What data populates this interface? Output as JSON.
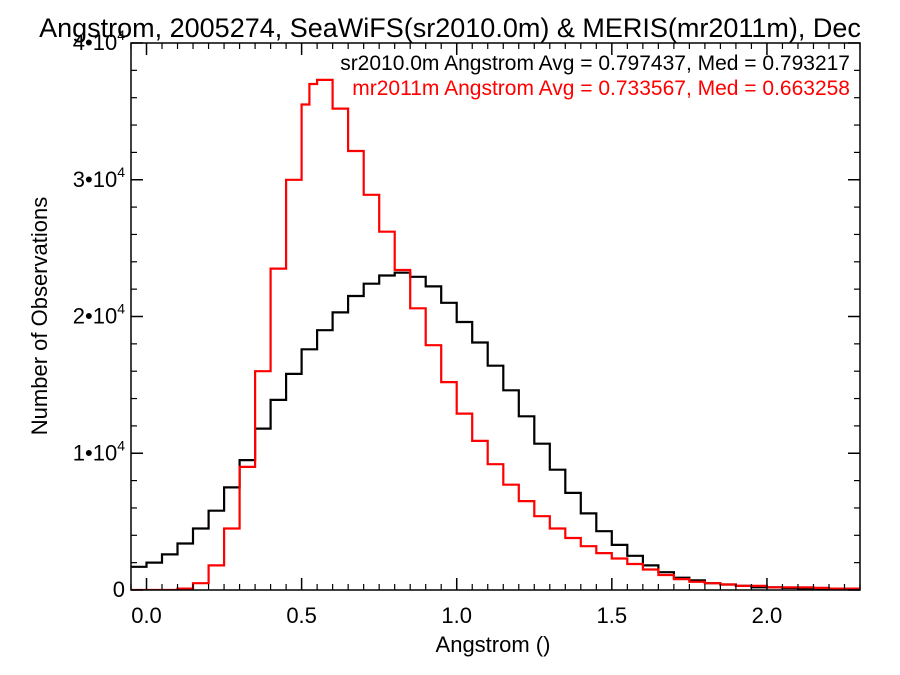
{
  "chart_data": {
    "type": "line",
    "title": "Angstrom, 2005274, SeaWiFS(sr2010.0m) & MERIS(mr2011m), Dec",
    "xlabel": "Angstrom ()",
    "ylabel": "Number of Observations",
    "xlim": [
      -0.05,
      2.3
    ],
    "ylim": [
      0,
      40000
    ],
    "xticks": [
      0.0,
      0.5,
      1.0,
      1.5,
      2.0
    ],
    "xtick_labels": [
      "0.0",
      "0.5",
      "1.0",
      "1.5",
      "2.0"
    ],
    "yticks": [
      0,
      10000,
      20000,
      30000,
      40000
    ],
    "ytick_labels": [
      {
        "mantissa": "0",
        "exp": ""
      },
      {
        "mantissa": "1•10",
        "exp": "4"
      },
      {
        "mantissa": "2•10",
        "exp": "4"
      },
      {
        "mantissa": "3•10",
        "exp": "4"
      },
      {
        "mantissa": "4•10",
        "exp": "4"
      }
    ],
    "legend_position": "top-right",
    "grid": false,
    "series": [
      {
        "name": "sr2010.0m",
        "legend_text": "sr2010.0m Angstrom Avg = 0.797437, Med = 0.793217",
        "color": "#000000",
        "x": [
          -0.05,
          0.0,
          0.05,
          0.1,
          0.15,
          0.2,
          0.25,
          0.3,
          0.35,
          0.4,
          0.45,
          0.5,
          0.55,
          0.6,
          0.65,
          0.7,
          0.75,
          0.8,
          0.85,
          0.9,
          0.95,
          1.0,
          1.05,
          1.1,
          1.15,
          1.2,
          1.25,
          1.3,
          1.35,
          1.4,
          1.45,
          1.5,
          1.55,
          1.6,
          1.65,
          1.7,
          1.75,
          1.8,
          1.85,
          1.9,
          1.95,
          2.0,
          2.05,
          2.1,
          2.15,
          2.2,
          2.25,
          2.3
        ],
        "y": [
          1700,
          2000,
          2600,
          3400,
          4500,
          5800,
          7500,
          9500,
          11800,
          13900,
          15800,
          17600,
          19000,
          20300,
          21500,
          22400,
          23000,
          23200,
          22900,
          22200,
          21000,
          19600,
          18100,
          16400,
          14600,
          12700,
          10700,
          8800,
          7100,
          5600,
          4300,
          3300,
          2500,
          1800,
          1300,
          900,
          700,
          500,
          400,
          300,
          200,
          200,
          150,
          100,
          100,
          50,
          50,
          50
        ]
      },
      {
        "name": "mr2011m",
        "legend_text": "mr2011m Angstrom Avg = 0.733567, Med = 0.663258",
        "color": "#ff0000",
        "x": [
          -0.05,
          0.0,
          0.05,
          0.1,
          0.15,
          0.2,
          0.25,
          0.3,
          0.35,
          0.4,
          0.45,
          0.5,
          0.525,
          0.55,
          0.6,
          0.65,
          0.7,
          0.75,
          0.8,
          0.85,
          0.9,
          0.95,
          1.0,
          1.05,
          1.1,
          1.15,
          1.2,
          1.25,
          1.3,
          1.35,
          1.4,
          1.45,
          1.5,
          1.55,
          1.6,
          1.65,
          1.7,
          1.75,
          1.8,
          1.85,
          1.9,
          1.95,
          2.0,
          2.05,
          2.1,
          2.15,
          2.2,
          2.25,
          2.3
        ],
        "y": [
          0,
          0,
          0,
          100,
          500,
          1800,
          4500,
          9000,
          16000,
          23500,
          30000,
          35500,
          37000,
          37300,
          35200,
          32100,
          28900,
          26200,
          23400,
          20600,
          17900,
          15200,
          12900,
          10900,
          9200,
          7700,
          6500,
          5400,
          4500,
          3800,
          3200,
          2700,
          2300,
          1900,
          1500,
          1100,
          800,
          600,
          500,
          400,
          300,
          300,
          200,
          200,
          200,
          150,
          100,
          100,
          100
        ]
      }
    ]
  }
}
